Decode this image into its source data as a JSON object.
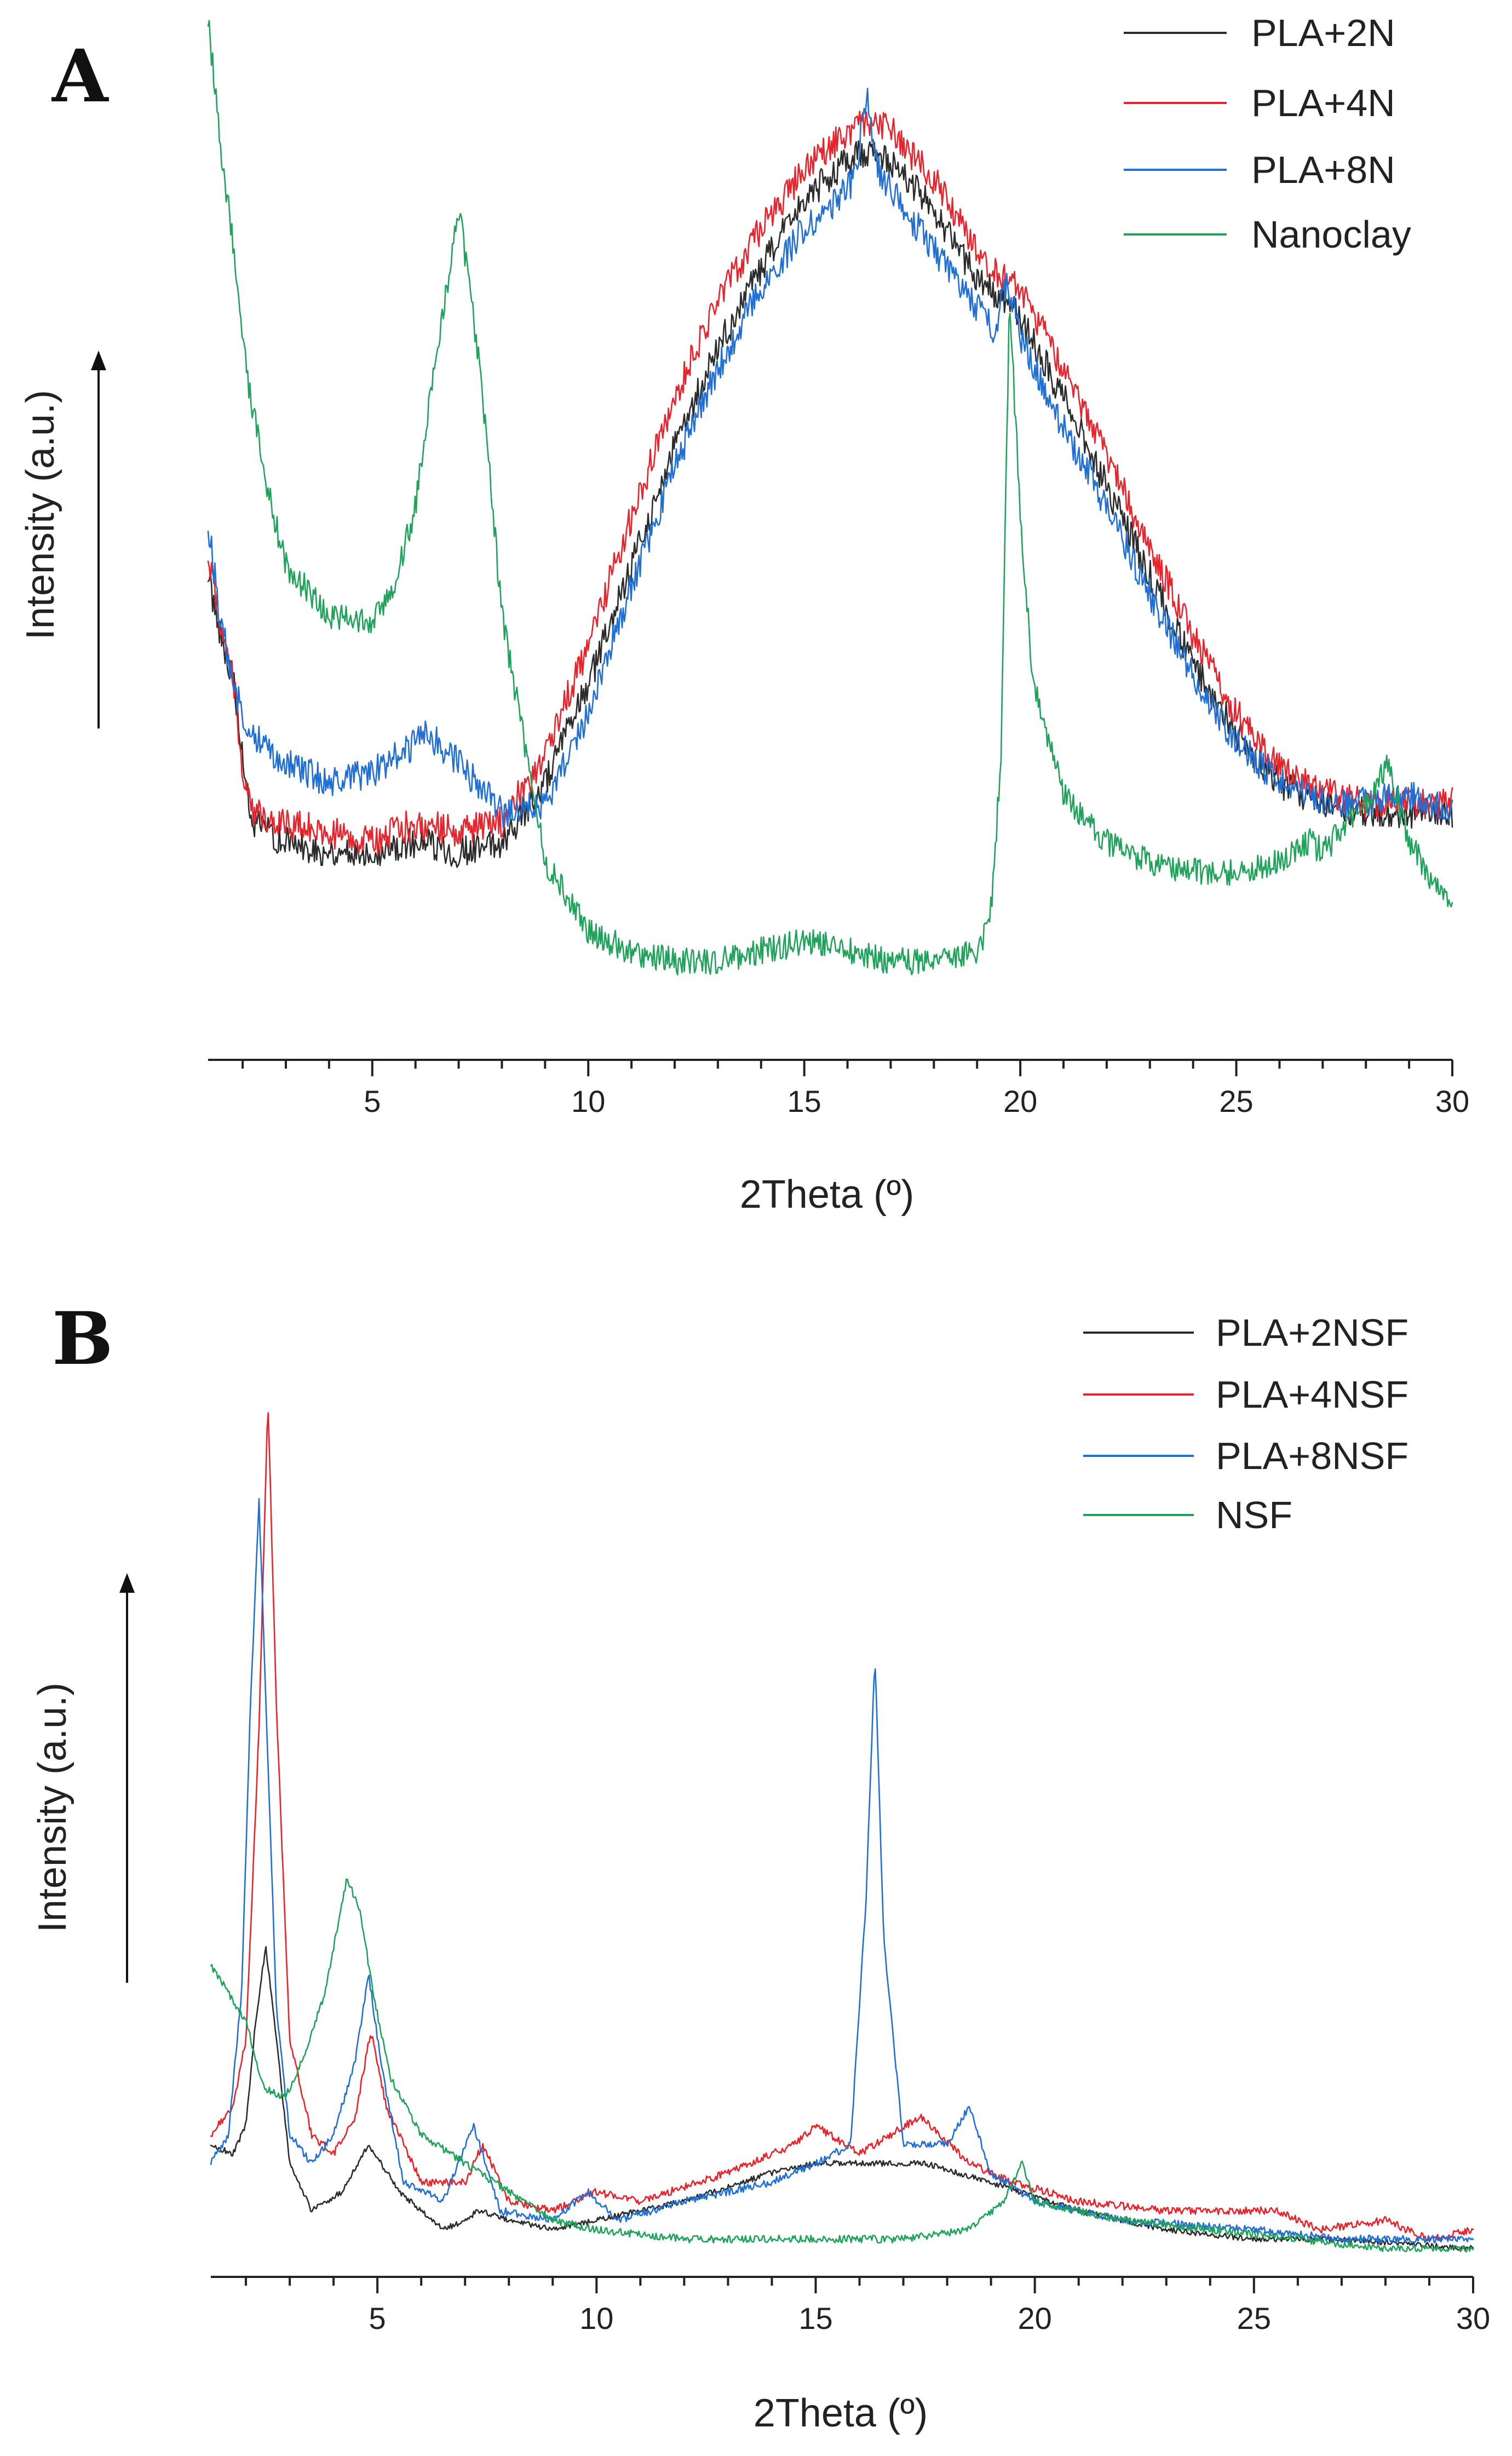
{
  "colors": {
    "black": "#2b2b2b",
    "red": "#e8232b",
    "blue": "#1f6fd6",
    "green": "#1fa35a"
  },
  "chart_data": [
    {
      "type": "line",
      "panel_label": "A",
      "xlabel": "2Theta (º)",
      "ylabel": "Intensity (a.u.)",
      "xlim": [
        1.2,
        30
      ],
      "ylim": [
        0,
        100
      ],
      "xticks": [
        5,
        10,
        15,
        20,
        25,
        30
      ],
      "xtick_labels": [
        "5",
        "10",
        "15",
        "20",
        "25",
        "30"
      ],
      "legend_position": "top-right",
      "series": [
        {
          "name": "PLA+2N",
          "color": "#2b2b2b",
          "noise": 1.6,
          "x": [
            1.2,
            1.5,
            1.8,
            2.0,
            2.2,
            3,
            4,
            5,
            6,
            7,
            8,
            9,
            10,
            11,
            12,
            13,
            14,
            15,
            16,
            16.5,
            17,
            18,
            19,
            19.6,
            20,
            21,
            22,
            23,
            24,
            25,
            26,
            27,
            28,
            29,
            30
          ],
          "y": [
            49,
            43,
            38,
            30,
            24,
            22,
            21,
            21,
            22,
            21,
            22,
            28,
            38,
            50,
            62,
            72,
            80,
            87,
            91,
            92,
            91,
            86,
            79,
            77,
            75,
            67,
            58,
            49,
            40,
            33,
            28,
            26,
            25,
            25,
            25
          ]
        },
        {
          "name": "PLA+4N",
          "color": "#e8232b",
          "noise": 1.6,
          "x": [
            1.2,
            1.5,
            1.8,
            2.0,
            2.2,
            3,
            4,
            5,
            6,
            7,
            8,
            9,
            10,
            11,
            12,
            13,
            14,
            15,
            16,
            16.5,
            17,
            18,
            19,
            19.6,
            20,
            21,
            22,
            23,
            24,
            25,
            26,
            27,
            28,
            29,
            30
          ],
          "y": [
            51,
            44,
            38,
            29,
            25,
            24,
            23,
            22,
            24,
            23,
            24,
            31,
            42,
            55,
            67,
            77,
            84,
            90,
            94,
            95,
            94,
            89,
            82,
            79,
            78,
            70,
            61,
            52,
            43,
            35,
            30,
            27,
            26,
            26,
            26
          ]
        },
        {
          "name": "PLA+8N",
          "color": "#1f6fd6",
          "noise": 1.6,
          "x": [
            1.2,
            1.5,
            1.8,
            2.0,
            2.2,
            3,
            4,
            5,
            6,
            6.3,
            7,
            8,
            9,
            10,
            11,
            12,
            13,
            14,
            15,
            16,
            16.2,
            16.45,
            16.7,
            17,
            18,
            19,
            19.4,
            19.7,
            20,
            21,
            22,
            23,
            24,
            25,
            26,
            27,
            28,
            29,
            30
          ],
          "y": [
            54,
            44,
            38,
            35,
            33,
            30,
            28,
            29,
            32,
            33,
            30,
            25,
            26,
            35,
            48,
            60,
            70,
            78,
            84,
            88,
            90,
            98,
            90,
            88,
            82,
            76,
            74,
            79,
            73,
            64,
            56,
            47,
            39,
            32,
            28,
            26,
            26,
            27,
            25
          ]
        },
        {
          "name": "Nanoclay",
          "color": "#1fa35a",
          "noise": 1.4,
          "x": [
            1.2,
            1.5,
            1.8,
            2.0,
            2.5,
            3.0,
            4,
            5,
            5.5,
            6,
            6.5,
            7,
            7.5,
            8,
            9,
            10,
            11,
            12,
            13,
            14,
            15,
            16,
            17,
            18,
            19,
            19.3,
            19.55,
            19.75,
            20,
            20.3,
            21,
            22,
            23,
            24,
            25,
            26,
            26.7,
            27,
            28,
            28.5,
            29,
            30
          ],
          "y": [
            105,
            92,
            82,
            72,
            59,
            50,
            45,
            44,
            48,
            56,
            72,
            86,
            70,
            45,
            20,
            13,
            11,
            10,
            10,
            11,
            12,
            11,
            10,
            10,
            11,
            14,
            30,
            77,
            55,
            38,
            27,
            22,
            20,
            19,
            19,
            20,
            22,
            21,
            26,
            30,
            22,
            15
          ]
        }
      ]
    },
    {
      "type": "line",
      "panel_label": "B",
      "xlabel": "2Theta (º)",
      "ylabel": "Intensity (a.u.)",
      "xlim": [
        1.2,
        30
      ],
      "ylim": [
        0,
        100
      ],
      "xticks": [
        5,
        10,
        15,
        20,
        25,
        30
      ],
      "xtick_labels": [
        "5",
        "10",
        "15",
        "20",
        "25",
        "30"
      ],
      "legend_position": "top-right",
      "series": [
        {
          "name": "PLA+2NSF",
          "color": "#2b2b2b",
          "noise": 0.3,
          "x": [
            1.2,
            1.7,
            2.0,
            2.2,
            2.45,
            2.7,
            3.0,
            3.5,
            4.2,
            4.8,
            5.5,
            6.5,
            7,
            7.3,
            8,
            9,
            10,
            12,
            14,
            15,
            17.5,
            19,
            21,
            23,
            25,
            27,
            30
          ],
          "y": [
            14,
            13,
            16,
            26,
            35,
            25,
            12,
            7,
            9,
            14,
            9,
            5,
            6,
            7,
            6,
            5,
            6,
            8,
            11,
            12,
            12,
            10,
            7,
            5,
            4,
            4,
            3
          ]
        },
        {
          "name": "PLA+4NSF",
          "color": "#e8232b",
          "noise": 0.4,
          "x": [
            1.2,
            1.7,
            2.0,
            2.3,
            2.5,
            2.7,
            3.0,
            3.5,
            4.0,
            4.5,
            4.85,
            5.2,
            6.0,
            7.0,
            7.4,
            8.0,
            9,
            10,
            11,
            13,
            14.5,
            15,
            16,
            17.4,
            18.5,
            19.5,
            21,
            23,
            25.5,
            26.5,
            28,
            29,
            30
          ],
          "y": [
            15,
            18,
            25,
            58,
            93,
            60,
            25,
            15,
            13,
            17,
            26,
            18,
            10,
            10,
            14,
            8,
            7,
            9,
            8,
            11,
            14,
            16,
            13,
            17,
            12,
            10,
            8,
            7,
            7,
            5,
            6,
            4,
            5
          ]
        },
        {
          "name": "PLA+8NSF",
          "color": "#1f6fd6",
          "noise": 0.4,
          "x": [
            1.2,
            1.6,
            1.9,
            2.1,
            2.3,
            2.5,
            2.7,
            3.0,
            3.5,
            4.0,
            4.5,
            4.8,
            5.1,
            5.6,
            6.5,
            7.2,
            7.8,
            9.0,
            9.8,
            10.5,
            12,
            14,
            15,
            15.8,
            16.15,
            16.35,
            16.55,
            17,
            18,
            18.5,
            19,
            20,
            22,
            25,
            27,
            30
          ],
          "y": [
            12,
            15,
            30,
            60,
            82,
            55,
            28,
            15,
            12,
            15,
            23,
            32,
            22,
            10,
            8,
            16,
            7,
            6,
            9,
            6,
            8,
            10,
            12,
            14,
            40,
            66,
            36,
            14,
            14,
            18,
            11,
            8,
            6,
            5,
            4,
            4
          ]
        },
        {
          "name": "NSF",
          "color": "#1fa35a",
          "noise": 0.4,
          "x": [
            1.2,
            1.6,
            2.0,
            2.4,
            2.9,
            3.3,
            3.8,
            4.3,
            4.6,
            4.9,
            5.3,
            6,
            7,
            8,
            9,
            10,
            12,
            15,
            17,
            18.5,
            19.3,
            19.7,
            20.0,
            21,
            22,
            24,
            26,
            28,
            30
          ],
          "y": [
            33,
            30,
            27,
            20,
            19,
            23,
            30,
            42,
            39,
            30,
            21,
            15,
            12,
            9,
            6,
            5,
            4,
            4,
            4,
            5,
            8,
            12,
            8,
            7,
            6,
            5,
            4,
            3,
            3
          ]
        }
      ]
    }
  ]
}
